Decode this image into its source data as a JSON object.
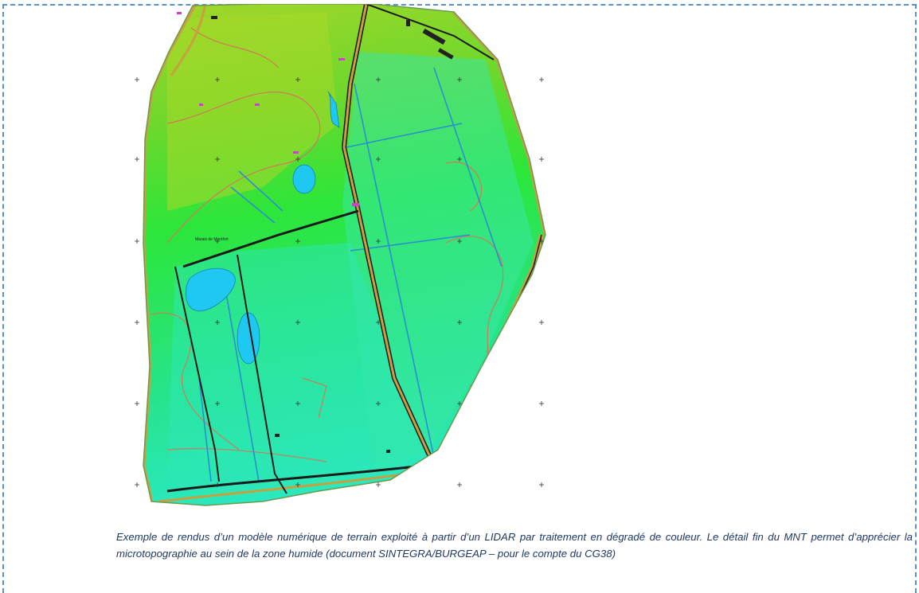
{
  "figure": {
    "caption": "Exemple de  rendus d’un modèle numérique de terrain exploité à partir d’un LIDAR par traitement en dégradé de couleur. Le détail fin du MNT permet d’apprécier la microtopographie au sein de la zone humide (document SINTEGRA/BURGEAP – pour le compte du CG38)"
  },
  "map": {
    "label": "Marais de Montfort",
    "palette": {
      "high_ground": "#9cd52a",
      "mid_ground": "#2fe83a",
      "low_ground": "#28e8b0",
      "water": "#1ec8f0",
      "contour": "#d07a5a",
      "road_fill": "#c8a040",
      "road_edge": "#1a1a1a",
      "ditch": "#2a8fd0",
      "grid_cross": "#333333"
    }
  }
}
